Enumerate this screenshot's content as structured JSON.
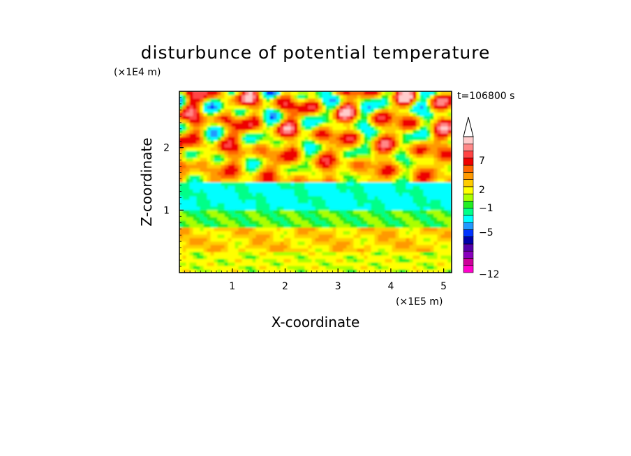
{
  "chart_data": {
    "type": "heatmap",
    "title": "disturbunce of potential temperature",
    "time_label": "t=106800 s",
    "x_axis": {
      "label": "X-coordinate",
      "unit": "(×1E5 m)",
      "range": [
        0,
        5.15
      ],
      "ticks": [
        1,
        2,
        3,
        4,
        5
      ]
    },
    "y_axis": {
      "label": "Z-coordinate",
      "unit": "(×1E4 m)",
      "range": [
        0,
        2.9
      ],
      "ticks": [
        1,
        2
      ]
    },
    "colorbar": {
      "labels": [
        "7",
        "2",
        "−1",
        "−5",
        "−12"
      ],
      "levels": [
        -12,
        -5,
        -1,
        2,
        7
      ],
      "colors": [
        "#ff00cc",
        "#cc0099",
        "#8800bb",
        "#5500aa",
        "#0000aa",
        "#0033ff",
        "#2299ff",
        "#00ffff",
        "#00ff88",
        "#22ee22",
        "#aaff00",
        "#ffff00",
        "#ffcc00",
        "#ff9900",
        "#ff6600",
        "#ee0000",
        "#ff4444",
        "#ff8888",
        "#ffcccc"
      ],
      "extend": "max"
    },
    "bands": [
      {
        "z": [
          0.0,
          0.3
        ],
        "description": "yellow/green near surface",
        "approx_value": 1
      },
      {
        "z": [
          0.3,
          0.7
        ],
        "description": "yellow-orange",
        "approx_value": 2
      },
      {
        "z": [
          0.7,
          1.0
        ],
        "description": "green",
        "approx_value": 0
      },
      {
        "z": [
          1.0,
          1.4
        ],
        "description": "cyan layer",
        "approx_value": -1
      },
      {
        "z": [
          1.4,
          2.9
        ],
        "description": "mixed warm/cold wave pattern",
        "approx_value": 3
      }
    ]
  }
}
